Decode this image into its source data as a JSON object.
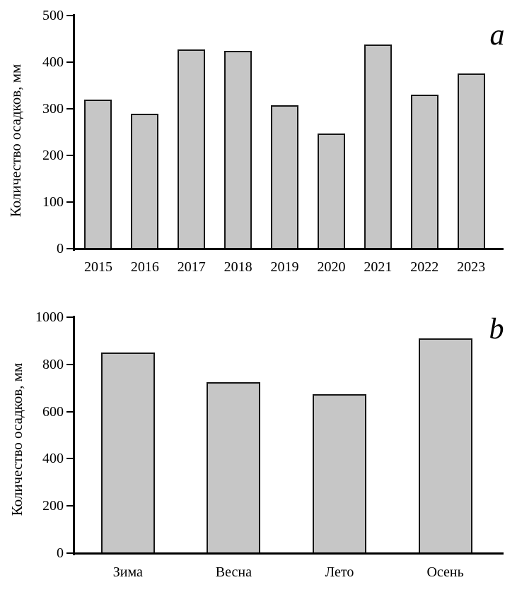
{
  "chart_data": [
    {
      "type": "bar",
      "panel_label": "a",
      "title": "",
      "xlabel": "",
      "ylabel": "Количество осадков, мм",
      "categories": [
        "2015",
        "2016",
        "2017",
        "2018",
        "2019",
        "2020",
        "2021",
        "2022",
        "2023"
      ],
      "values": [
        320,
        290,
        427,
        424,
        308,
        247,
        438,
        330,
        376
      ],
      "ylim": [
        0,
        500
      ],
      "yticks": [
        0,
        100,
        200,
        300,
        400,
        500
      ],
      "grid": "off",
      "legend": "none",
      "bar_fill": "#c6c6c6",
      "bar_border": "#161616",
      "axis_color": "#000000"
    },
    {
      "type": "bar",
      "panel_label": "b",
      "title": "",
      "xlabel": "",
      "ylabel": "Количество осадков, мм",
      "categories": [
        "Зима",
        "Весна",
        "Лето",
        "Осень"
      ],
      "values": [
        850,
        725,
        675,
        910
      ],
      "ylim": [
        0,
        1000
      ],
      "yticks": [
        0,
        200,
        400,
        600,
        800,
        1000
      ],
      "grid": "off",
      "legend": "none",
      "bar_fill": "#c6c6c6",
      "bar_border": "#161616",
      "axis_color": "#000000"
    }
  ]
}
